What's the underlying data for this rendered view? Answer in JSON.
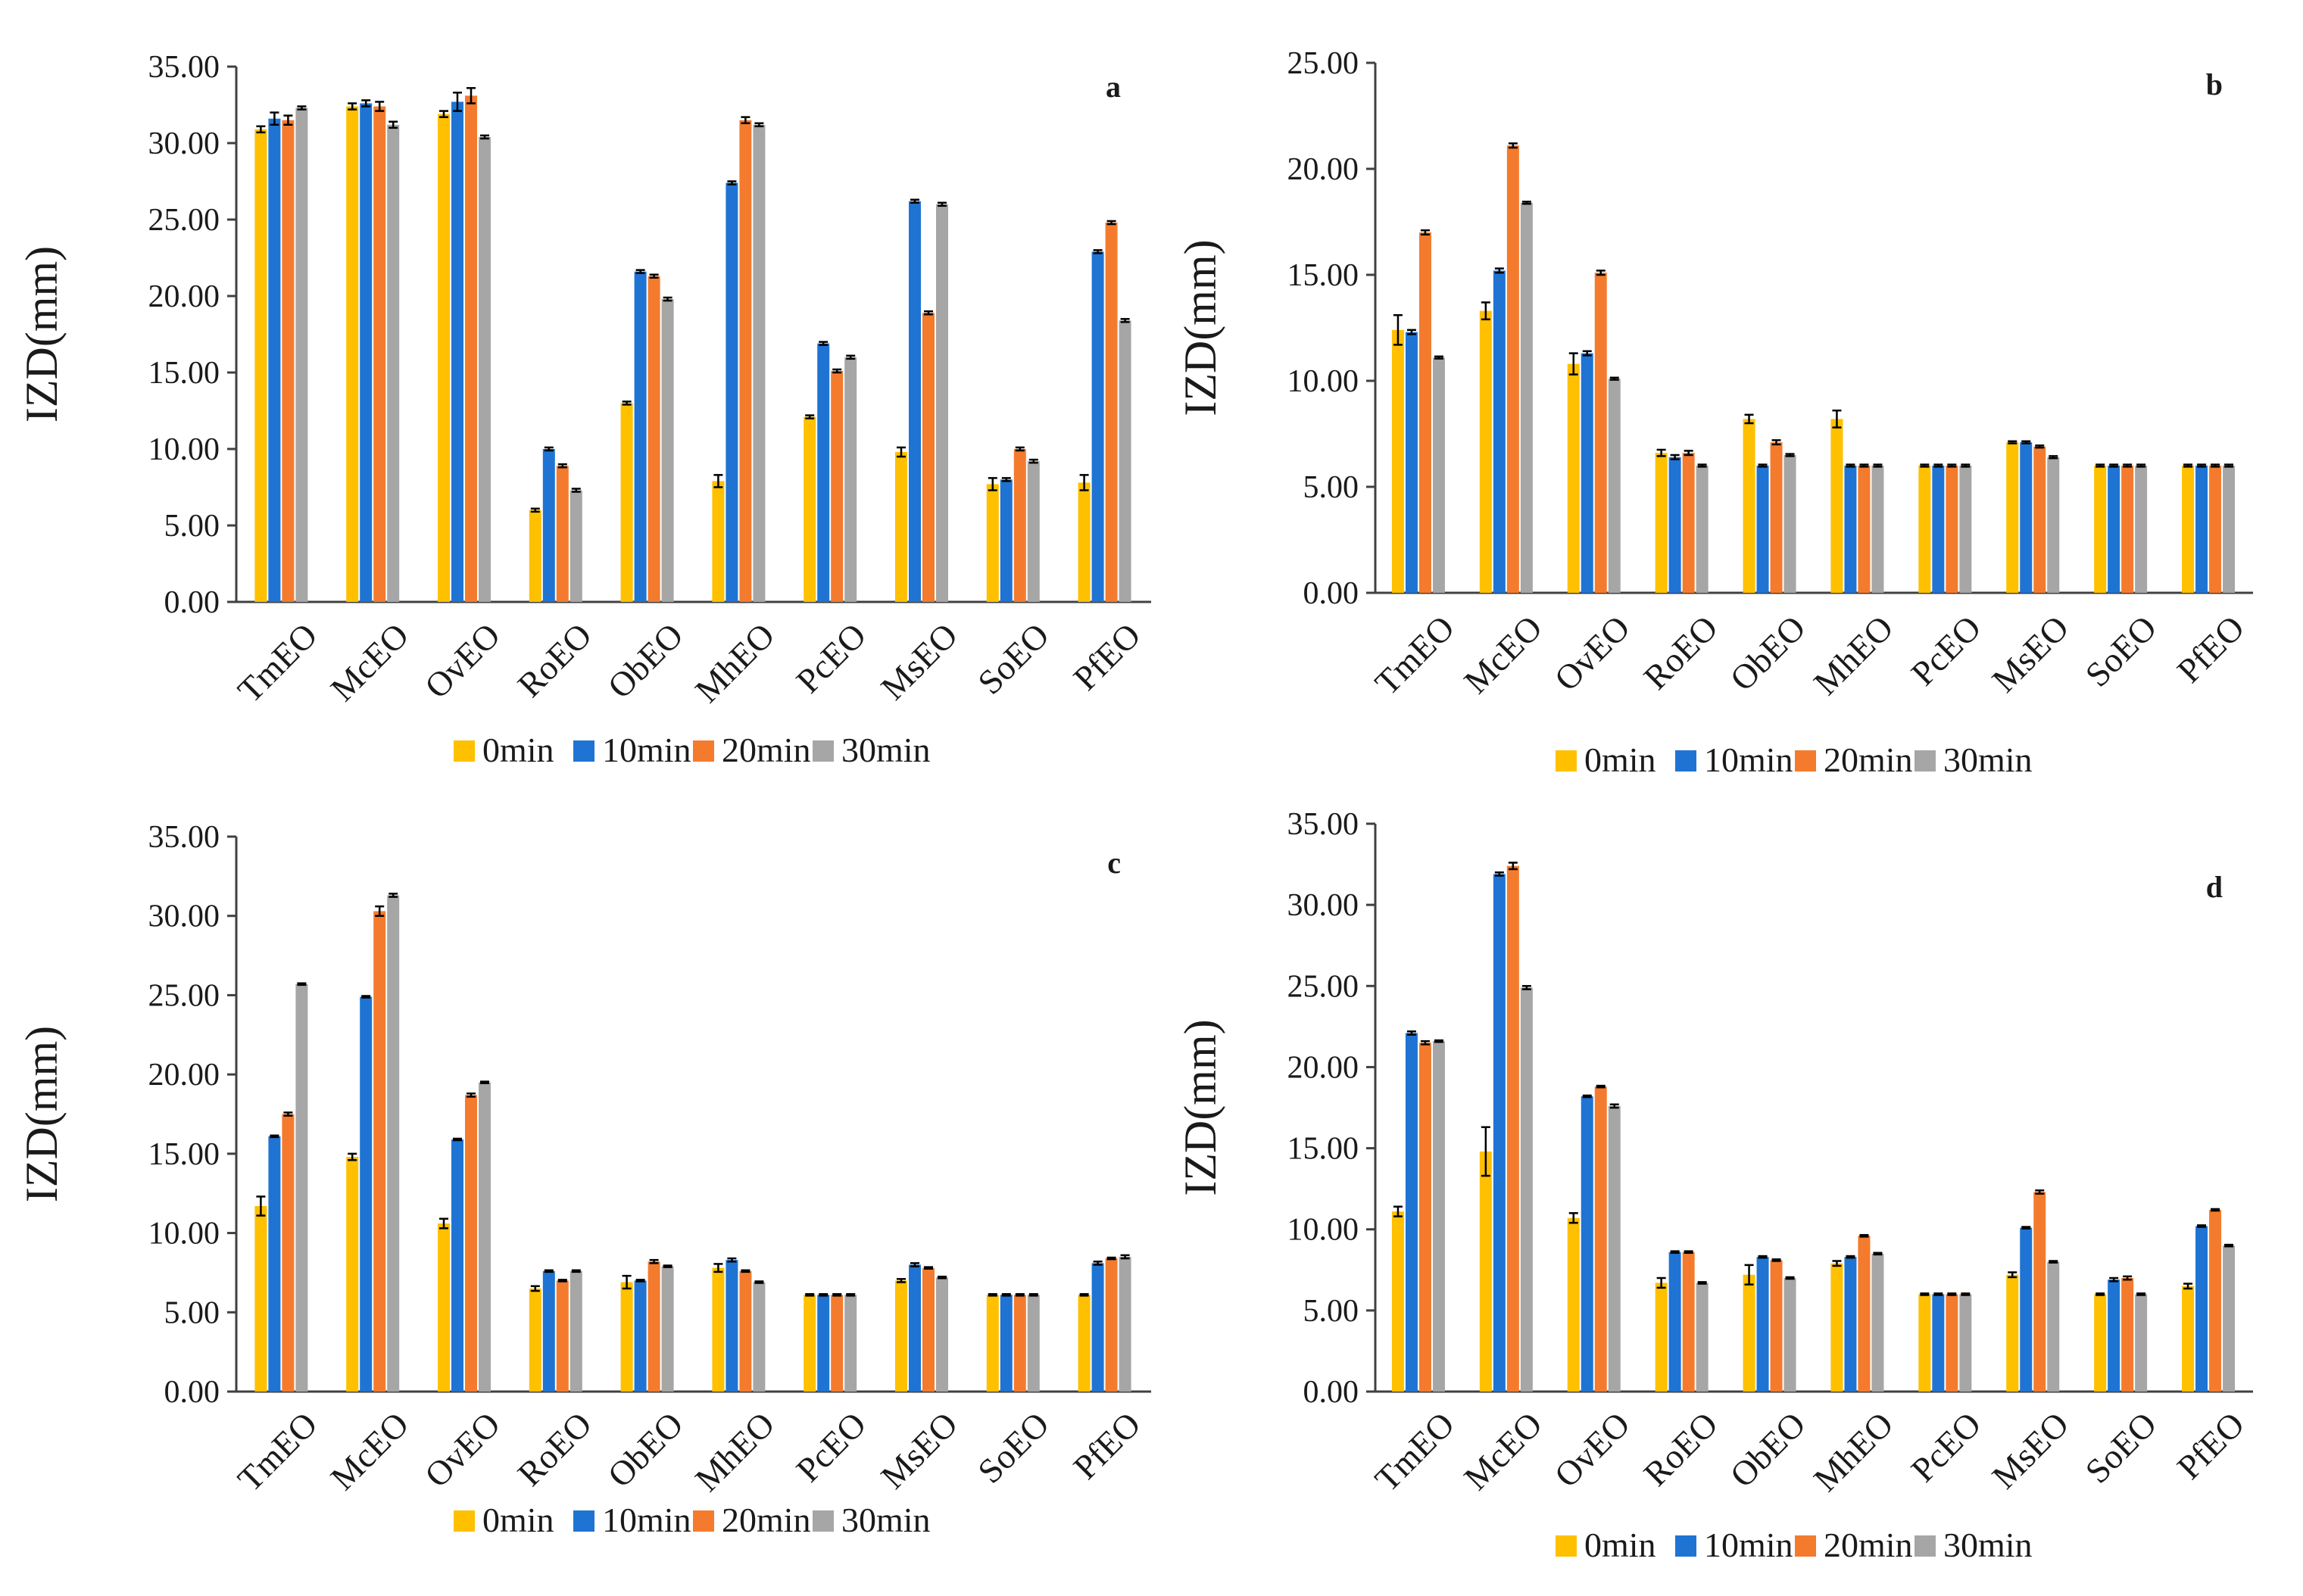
{
  "figure": {
    "series_colors": {
      "0min": "#FFC000",
      "10min": "#1F74D3",
      "20min": "#F47B2E",
      "30min": "#A6A6A6"
    }
  },
  "chart_data": [
    {
      "type": "bar",
      "panel": "a",
      "title": "",
      "xlabel": "",
      "ylabel": "IZD(mm)",
      "ylim": [
        0,
        35
      ],
      "yticks": [
        "0.00",
        "5.00",
        "10.00",
        "15.00",
        "20.00",
        "25.00",
        "30.00",
        "35.00"
      ],
      "legend": "bottom",
      "categories": [
        "TmEO",
        "McEO",
        "OvEO",
        "RoEO",
        "ObEO",
        "MhEO",
        "PcEO",
        "MsEO",
        "SoEO",
        "PfEO"
      ],
      "series": [
        {
          "name": "0min",
          "values": [
            30.9,
            32.4,
            31.9,
            6.0,
            13.0,
            7.9,
            12.1,
            9.8,
            7.7,
            7.8
          ],
          "errors": [
            0.2,
            0.2,
            0.2,
            0.1,
            0.1,
            0.4,
            0.1,
            0.3,
            0.4,
            0.5
          ]
        },
        {
          "name": "10min",
          "values": [
            31.6,
            32.6,
            32.7,
            10.0,
            21.6,
            27.4,
            16.9,
            26.2,
            8.0,
            22.9
          ],
          "errors": [
            0.4,
            0.2,
            0.6,
            0.1,
            0.1,
            0.1,
            0.1,
            0.1,
            0.1,
            0.1
          ]
        },
        {
          "name": "20min",
          "values": [
            31.5,
            32.4,
            33.1,
            8.9,
            21.3,
            31.5,
            15.1,
            18.9,
            10.0,
            24.8
          ],
          "errors": [
            0.3,
            0.3,
            0.5,
            0.1,
            0.1,
            0.2,
            0.1,
            0.1,
            0.1,
            0.1
          ]
        },
        {
          "name": "30min",
          "values": [
            32.3,
            31.2,
            30.4,
            7.3,
            19.8,
            31.2,
            16.0,
            26.0,
            9.2,
            18.4
          ],
          "errors": [
            0.1,
            0.2,
            0.1,
            0.1,
            0.1,
            0.1,
            0.1,
            0.1,
            0.1,
            0.1
          ]
        }
      ]
    },
    {
      "type": "bar",
      "panel": "b",
      "title": "",
      "xlabel": "",
      "ylabel": "IZD(mm)",
      "ylim": [
        0,
        25
      ],
      "yticks": [
        "0.00",
        "5.00",
        "10.00",
        "15.00",
        "20.00",
        "25.00"
      ],
      "legend": "bottom",
      "categories": [
        "TmEO",
        "McEO",
        "OvEO",
        "RoEO",
        "ObEO",
        "MhEO",
        "PcEO",
        "MsEO",
        "SoEO",
        "PfEO"
      ],
      "series": [
        {
          "name": "0min",
          "values": [
            12.4,
            13.3,
            10.8,
            6.6,
            8.2,
            8.2,
            6.0,
            7.1,
            6.0,
            6.0
          ],
          "errors": [
            0.7,
            0.4,
            0.5,
            0.15,
            0.2,
            0.4,
            0.05,
            0.05,
            0.05,
            0.05
          ]
        },
        {
          "name": "10min",
          "values": [
            12.3,
            15.2,
            11.3,
            6.4,
            6.0,
            6.0,
            6.0,
            7.1,
            6.0,
            6.0
          ],
          "errors": [
            0.1,
            0.1,
            0.1,
            0.1,
            0.05,
            0.05,
            0.05,
            0.05,
            0.05,
            0.05
          ]
        },
        {
          "name": "20min",
          "values": [
            17.0,
            21.1,
            15.1,
            6.6,
            7.1,
            6.0,
            6.0,
            6.9,
            6.0,
            6.0
          ],
          "errors": [
            0.1,
            0.1,
            0.1,
            0.1,
            0.1,
            0.05,
            0.05,
            0.05,
            0.05,
            0.05
          ]
        },
        {
          "name": "30min",
          "values": [
            11.1,
            18.4,
            10.1,
            6.0,
            6.5,
            6.0,
            6.0,
            6.4,
            6.0,
            6.0
          ],
          "errors": [
            0.05,
            0.05,
            0.05,
            0.05,
            0.05,
            0.05,
            0.05,
            0.05,
            0.05,
            0.05
          ]
        }
      ]
    },
    {
      "type": "bar",
      "panel": "c",
      "title": "",
      "xlabel": "",
      "ylabel": "IZD(mm)",
      "ylim": [
        0,
        35
      ],
      "yticks": [
        "0.00",
        "5.00",
        "10.00",
        "15.00",
        "20.00",
        "25.00",
        "30.00",
        "35.00"
      ],
      "legend": "bottom",
      "categories": [
        "TmEO",
        "McEO",
        "OvEO",
        "RoEO",
        "ObEO",
        "MhEO",
        "PcEO",
        "MsEO",
        "SoEO",
        "PfEO"
      ],
      "series": [
        {
          "name": "0min",
          "values": [
            11.7,
            14.8,
            10.6,
            6.5,
            6.9,
            7.8,
            6.1,
            7.0,
            6.1,
            6.1
          ],
          "errors": [
            0.6,
            0.2,
            0.3,
            0.15,
            0.4,
            0.25,
            0.05,
            0.1,
            0.05,
            0.05
          ]
        },
        {
          "name": "10min",
          "values": [
            16.1,
            24.9,
            15.9,
            7.6,
            7.0,
            8.3,
            6.1,
            8.0,
            6.1,
            8.1
          ],
          "errors": [
            0.05,
            0.05,
            0.05,
            0.05,
            0.05,
            0.1,
            0.05,
            0.1,
            0.05,
            0.1
          ]
        },
        {
          "name": "20min",
          "values": [
            17.5,
            30.3,
            18.7,
            7.0,
            8.2,
            7.6,
            6.1,
            7.8,
            6.1,
            8.4
          ],
          "errors": [
            0.1,
            0.3,
            0.1,
            0.05,
            0.1,
            0.05,
            0.05,
            0.05,
            0.05,
            0.05
          ]
        },
        {
          "name": "30min",
          "values": [
            25.7,
            31.3,
            19.5,
            7.6,
            7.9,
            6.9,
            6.1,
            7.2,
            6.1,
            8.5
          ],
          "errors": [
            0.05,
            0.1,
            0.05,
            0.05,
            0.05,
            0.05,
            0.05,
            0.05,
            0.05,
            0.1
          ]
        }
      ]
    },
    {
      "type": "bar",
      "panel": "d",
      "title": "",
      "xlabel": "",
      "ylabel": "IZD(mm)",
      "ylim": [
        0,
        35
      ],
      "yticks": [
        "0.00",
        "5.00",
        "10.00",
        "15.00",
        "20.00",
        "25.00",
        "30.00",
        "35.00"
      ],
      "legend": "bottom",
      "categories": [
        "TmEO",
        "McEO",
        "OvEO",
        "RoEO",
        "ObEO",
        "MhEO",
        "PcEO",
        "MsEO",
        "SoEO",
        "PfEO"
      ],
      "series": [
        {
          "name": "0min",
          "values": [
            11.1,
            14.8,
            10.7,
            6.7,
            7.2,
            7.9,
            6.0,
            7.2,
            6.0,
            6.5
          ],
          "errors": [
            0.3,
            1.5,
            0.3,
            0.3,
            0.6,
            0.15,
            0.05,
            0.15,
            0.05,
            0.15
          ]
        },
        {
          "name": "10min",
          "values": [
            22.1,
            31.9,
            18.2,
            8.6,
            8.3,
            8.3,
            6.0,
            10.1,
            6.9,
            10.2
          ],
          "errors": [
            0.1,
            0.1,
            0.05,
            0.05,
            0.05,
            0.05,
            0.05,
            0.05,
            0.1,
            0.05
          ]
        },
        {
          "name": "20min",
          "values": [
            21.5,
            32.4,
            18.8,
            8.6,
            8.1,
            9.6,
            6.0,
            12.3,
            7.0,
            11.2
          ],
          "errors": [
            0.1,
            0.2,
            0.05,
            0.05,
            0.05,
            0.05,
            0.05,
            0.1,
            0.1,
            0.05
          ]
        },
        {
          "name": "30min",
          "values": [
            21.6,
            24.9,
            17.6,
            6.7,
            7.0,
            8.5,
            6.0,
            8.0,
            6.0,
            9.0
          ],
          "errors": [
            0.05,
            0.1,
            0.1,
            0.05,
            0.05,
            0.05,
            0.05,
            0.05,
            0.05,
            0.05
          ]
        }
      ]
    }
  ]
}
